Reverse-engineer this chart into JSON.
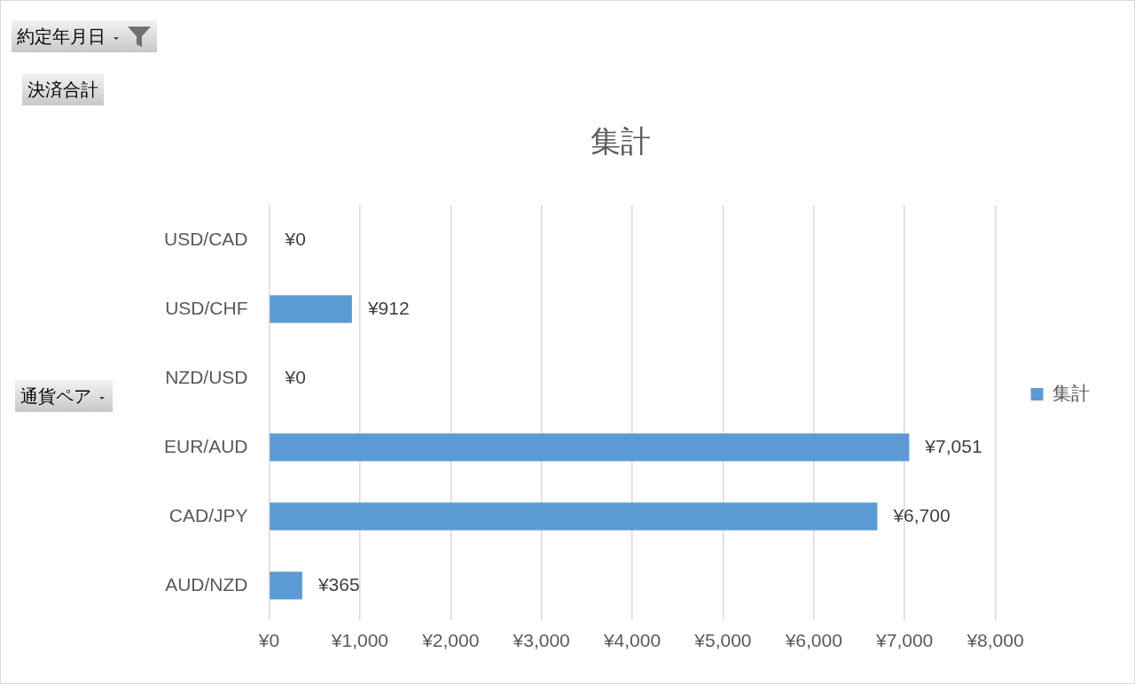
{
  "chart_data": {
    "type": "bar",
    "orientation": "horizontal",
    "title": "集計",
    "categories": [
      "USD/CAD",
      "USD/CHF",
      "NZD/USD",
      "EUR/AUD",
      "CAD/JPY",
      "AUD/NZD"
    ],
    "series": [
      {
        "name": "集計",
        "color": "#5b9bd5",
        "values": [
          0,
          912,
          0,
          7051,
          6700,
          365
        ],
        "value_labels": [
          "¥0",
          "¥912",
          "¥0",
          "¥7,051",
          "¥6,700",
          "¥365"
        ]
      }
    ],
    "xlim": [
      0,
      8000
    ],
    "xticks": [
      {
        "value": 0,
        "label": "¥0"
      },
      {
        "value": 1000,
        "label": "¥1,000"
      },
      {
        "value": 2000,
        "label": "¥2,000"
      },
      {
        "value": 3000,
        "label": "¥3,000"
      },
      {
        "value": 4000,
        "label": "¥4,000"
      },
      {
        "value": 5000,
        "label": "¥5,000"
      },
      {
        "value": 6000,
        "label": "¥6,000"
      },
      {
        "value": 7000,
        "label": "¥7,000"
      },
      {
        "value": 8000,
        "label": "¥8,000"
      }
    ],
    "grid": "x",
    "legend": "right",
    "annotations": [
      "約定年月日",
      "決済合計",
      "通貨ペア"
    ]
  }
}
